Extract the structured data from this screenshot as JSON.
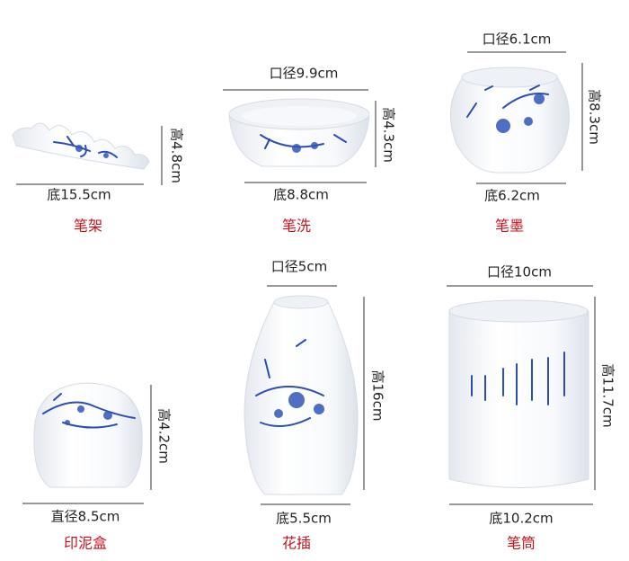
{
  "items": [
    {
      "name": "笔架",
      "side": "高4.8cm",
      "bottom": "底15.5cm"
    },
    {
      "name": "笔洗",
      "top": "口径9.9cm",
      "side": "高4.3cm",
      "bottom": "底8.8cm"
    },
    {
      "name": "笔墨",
      "top": "口径6.1cm",
      "side": "高8.3cm",
      "bottom": "底6.2cm"
    },
    {
      "name": "印泥盒",
      "side": "高4.2cm",
      "bottom": "直径8.5cm"
    },
    {
      "name": "花插",
      "top": "口径5cm",
      "side": "高16cm",
      "bottom": "底5.5cm"
    },
    {
      "name": "笔筒",
      "top": "口径10cm",
      "side": "高11.7cm",
      "bottom": "底10.2cm"
    }
  ]
}
